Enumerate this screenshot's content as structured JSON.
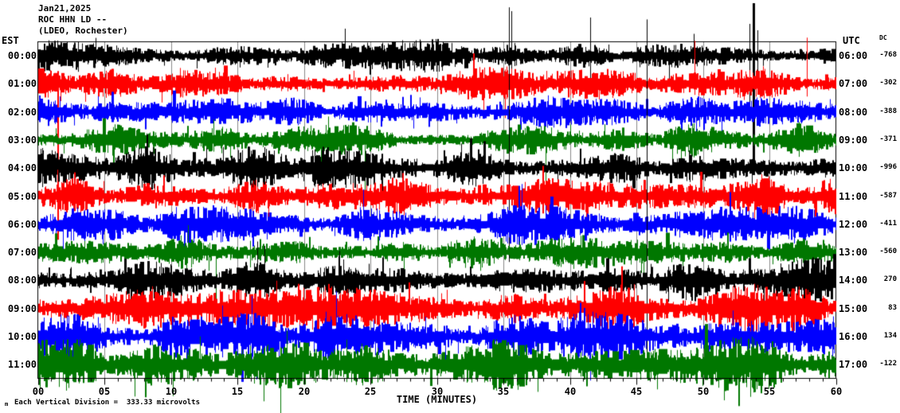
{
  "header": {
    "date": "Jan21,2025",
    "station": "ROC HHN LD --",
    "location": "(LDEO, Rochester)"
  },
  "left_axis_label": "EST",
  "right_axis_label": "UTC",
  "dc_column_label": "DC",
  "x_axis": {
    "label": "TIME (MINUTES)",
    "ticks": [
      "00",
      "05",
      "10",
      "15",
      "20",
      "25",
      "30",
      "35",
      "40",
      "45",
      "50",
      "55",
      "60"
    ]
  },
  "footer": {
    "scale_note": "Each Vertical Division =  333.33 microvolts",
    "watermark": "m"
  },
  "colors": {
    "background": "#ffffff",
    "axis": "#000000",
    "grid": "#888888",
    "trace_black": "#000000",
    "trace_red": "#ff0000",
    "trace_blue": "#0000ff",
    "trace_green": "#007700"
  },
  "chart_data": {
    "type": "line",
    "subtype": "helicorder-seismogram",
    "title": "ROC HHN LD -- (LDEO, Rochester) Jan21,2025",
    "xlabel": "TIME (MINUTES)",
    "x_range_minutes": [
      0,
      60
    ],
    "x_tick_interval_minutes": 5,
    "grid_interval_minutes": 5,
    "minutes_per_row": 60,
    "vertical_division_microvolts": 333.33,
    "trace_color_cycle": [
      "#000000",
      "#ff0000",
      "#0000ff",
      "#007700"
    ],
    "rows": [
      {
        "est": "00:00",
        "utc": "06:00",
        "dc": "-768",
        "color": "#000000",
        "amp": 13,
        "seed": 11,
        "spikes": [
          {
            "min": 23.1,
            "up": 34,
            "down": 16,
            "w": 1
          },
          {
            "min": 35.6,
            "up": 56,
            "down": 26,
            "w": 1
          },
          {
            "min": 41.5,
            "up": 48,
            "down": 30,
            "w": 1
          },
          {
            "min": 53.5,
            "up": 40,
            "down": 62,
            "w": 1
          },
          {
            "min": 53.8,
            "up": 66,
            "down": 150,
            "w": 3
          },
          {
            "min": 54.1,
            "up": 32,
            "down": 44,
            "w": 1
          }
        ]
      },
      {
        "est": "01:00",
        "utc": "07:00",
        "dc": "-302",
        "color": "#ff0000",
        "amp": 13,
        "seed": 22,
        "spikes": [
          {
            "min": 1.5,
            "up": 16,
            "down": 196,
            "w": 2
          },
          {
            "min": 49.4,
            "up": 54,
            "down": 14,
            "w": 1
          },
          {
            "min": 57.8,
            "up": 58,
            "down": 16,
            "w": 1
          }
        ]
      },
      {
        "est": "02:00",
        "utc": "08:00",
        "dc": "-388",
        "color": "#0000ff",
        "amp": 13,
        "seed": 33,
        "spikes": []
      },
      {
        "est": "03:00",
        "utc": "09:00",
        "dc": "-371",
        "color": "#007700",
        "amp": 14,
        "seed": 44,
        "spikes": [
          {
            "min": 24.6,
            "up": 12,
            "down": 80,
            "w": 1
          },
          {
            "min": 38.2,
            "up": 10,
            "down": 64,
            "w": 1
          }
        ]
      },
      {
        "est": "04:00",
        "utc": "10:00",
        "dc": "-996",
        "color": "#000000",
        "amp": 18,
        "seed": 55,
        "spikes": [
          {
            "min": 35.4,
            "up": 202,
            "down": 118,
            "w": 1
          }
        ]
      },
      {
        "est": "05:00",
        "utc": "11:00",
        "dc": "-587",
        "color": "#ff0000",
        "amp": 16,
        "seed": 66,
        "spikes": []
      },
      {
        "est": "06:00",
        "utc": "12:00",
        "dc": "-411",
        "color": "#0000ff",
        "amp": 16,
        "seed": 77,
        "spikes": []
      },
      {
        "est": "07:00",
        "utc": "13:00",
        "dc": "-560",
        "color": "#007700",
        "amp": 14,
        "seed": 88,
        "spikes": [
          {
            "min": 13.4,
            "up": 10,
            "down": 70,
            "w": 1
          }
        ]
      },
      {
        "est": "08:00",
        "utc": "14:00",
        "dc": "270",
        "color": "#000000",
        "amp": 19,
        "seed": 99,
        "spikes": [
          {
            "min": 45.8,
            "up": 328,
            "down": 92,
            "w": 1
          }
        ]
      },
      {
        "est": "09:00",
        "utc": "15:00",
        "dc": "83",
        "color": "#ff0000",
        "amp": 19,
        "seed": 110,
        "spikes": []
      },
      {
        "est": "10:00",
        "utc": "16:00",
        "dc": "134",
        "color": "#0000ff",
        "amp": 20,
        "seed": 121,
        "spikes": []
      },
      {
        "est": "11:00",
        "utc": "17:00",
        "dc": "-122",
        "color": "#007700",
        "amp": 22,
        "seed": 132,
        "spikes": [
          {
            "min": 7.3,
            "up": 8,
            "down": 40,
            "w": 1
          },
          {
            "min": 17.0,
            "up": 10,
            "down": 46,
            "w": 1
          },
          {
            "min": 52.7,
            "up": 12,
            "down": 52,
            "w": 2
          }
        ]
      }
    ]
  }
}
